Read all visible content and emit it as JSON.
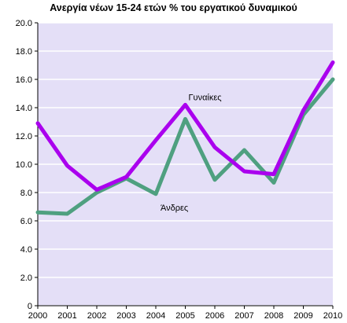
{
  "colors": {
    "plot_background": "#e4dff7",
    "grid": "#ffffff",
    "women": "#aa00ee",
    "men": "#4fa080"
  },
  "chart_data": {
    "type": "line",
    "title": "Ανεργία νέων 15-24 ετών  % του εργατικού δυναμικού",
    "xlabel": "",
    "ylabel": "",
    "x": [
      "2000",
      "2001",
      "2002",
      "2003",
      "2004",
      "2005",
      "2006",
      "2007",
      "2008",
      "2009",
      "2010"
    ],
    "ylim": [
      0,
      20
    ],
    "yticks": [
      "0",
      "2.0",
      "4.0",
      "6.0",
      "8.0",
      "10.0",
      "12.0",
      "14.0",
      "16.0",
      "18.0",
      "20.0"
    ],
    "grid": true,
    "legend": "none",
    "series": [
      {
        "name": "Γυναίκες",
        "color": "#aa00ee",
        "values": [
          12.9,
          9.9,
          8.2,
          9.1,
          11.7,
          14.2,
          11.2,
          9.5,
          9.3,
          13.8,
          17.2
        ]
      },
      {
        "name": "Άνδρες",
        "color": "#4fa080",
        "values": [
          6.6,
          6.5,
          8.0,
          9.0,
          7.9,
          13.2,
          8.9,
          11.0,
          8.7,
          13.5,
          16.0
        ]
      }
    ],
    "annotations": [
      {
        "text": "Γυναίκες",
        "series": "Γυναίκες"
      },
      {
        "text": "Άνδρες",
        "series": "Άνδρες"
      }
    ]
  }
}
